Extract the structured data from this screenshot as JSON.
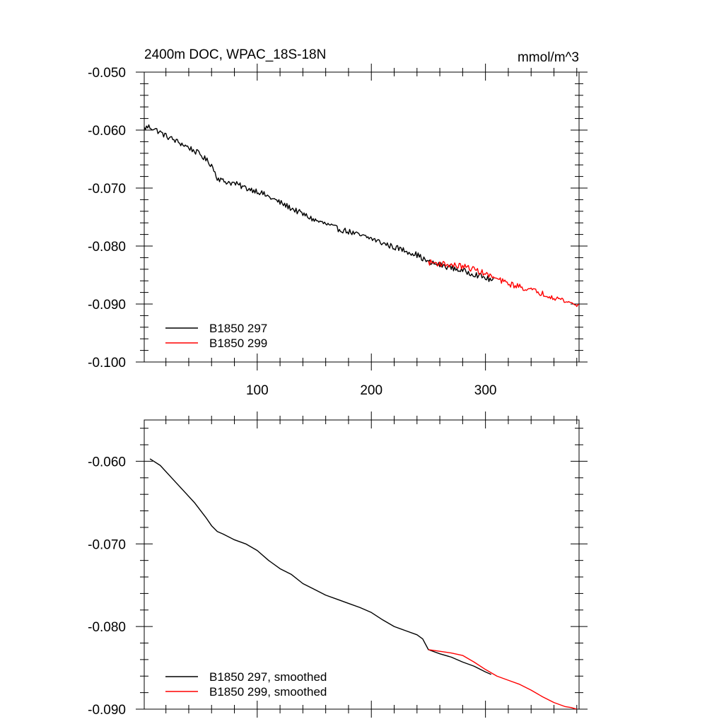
{
  "chart_data": [
    {
      "type": "line",
      "title": "2400m DOC, WPAC_18S-18N",
      "units": "mmol/m^3",
      "xlim": [
        1,
        382
      ],
      "ylim": [
        -0.1,
        -0.05
      ],
      "xticks": [
        100,
        200,
        300
      ],
      "xtick_labels": [
        "100",
        "200",
        "300"
      ],
      "yticks": [
        -0.05,
        -0.06,
        -0.07,
        -0.08,
        -0.09,
        -0.1
      ],
      "ytick_labels": [
        "-0.050",
        "-0.060",
        "-0.070",
        "-0.080",
        "-0.090",
        "-0.100"
      ],
      "legend_position": "bottom-left",
      "series": [
        {
          "name": "B1850 297",
          "color": "#000000",
          "noise": 0.0005,
          "x": [
            1,
            5,
            10,
            20,
            30,
            40,
            50,
            60,
            65,
            70,
            80,
            90,
            100,
            110,
            120,
            130,
            140,
            150,
            160,
            170,
            180,
            190,
            200,
            210,
            220,
            230,
            240,
            250,
            260,
            270,
            280,
            290,
            300,
            307
          ],
          "y": [
            -0.0597,
            -0.0594,
            -0.0598,
            -0.061,
            -0.062,
            -0.063,
            -0.0642,
            -0.066,
            -0.0682,
            -0.0688,
            -0.0692,
            -0.07,
            -0.0705,
            -0.0715,
            -0.0725,
            -0.0735,
            -0.0745,
            -0.0755,
            -0.0762,
            -0.077,
            -0.0775,
            -0.0782,
            -0.0787,
            -0.0795,
            -0.0802,
            -0.0808,
            -0.0815,
            -0.0828,
            -0.0833,
            -0.0837,
            -0.0843,
            -0.0848,
            -0.0855,
            -0.086
          ]
        },
        {
          "name": "B1850 299",
          "color": "#ff0000",
          "noise": 0.0005,
          "x": [
            250,
            260,
            270,
            280,
            290,
            300,
            310,
            320,
            330,
            340,
            350,
            360,
            370,
            382
          ],
          "y": [
            -0.0828,
            -0.083,
            -0.0833,
            -0.0835,
            -0.084,
            -0.0848,
            -0.0857,
            -0.0865,
            -0.087,
            -0.0876,
            -0.0882,
            -0.0888,
            -0.0895,
            -0.0903
          ]
        }
      ]
    },
    {
      "type": "line",
      "xlim": [
        1,
        382
      ],
      "ylim": [
        -0.09,
        -0.055
      ],
      "yticks": [
        -0.06,
        -0.07,
        -0.08,
        -0.09
      ],
      "ytick_labels": [
        "-0.060",
        "-0.070",
        "-0.080",
        "-0.090"
      ],
      "xticks": [
        100,
        200,
        300
      ],
      "legend_position": "bottom-left",
      "series": [
        {
          "name": "B1850 297, smoothed",
          "color": "#000000",
          "x": [
            6,
            15,
            25,
            35,
            45,
            55,
            60,
            65,
            70,
            80,
            90,
            100,
            110,
            120,
            130,
            140,
            150,
            160,
            170,
            180,
            190,
            200,
            210,
            220,
            230,
            240,
            245,
            250,
            260,
            270,
            280,
            290,
            300,
            305
          ],
          "y": [
            -0.0597,
            -0.0605,
            -0.062,
            -0.0635,
            -0.065,
            -0.0668,
            -0.0678,
            -0.0685,
            -0.0688,
            -0.0695,
            -0.07,
            -0.0708,
            -0.072,
            -0.073,
            -0.0737,
            -0.0748,
            -0.0755,
            -0.0762,
            -0.0767,
            -0.0772,
            -0.0777,
            -0.0783,
            -0.0792,
            -0.08,
            -0.0805,
            -0.081,
            -0.0815,
            -0.0828,
            -0.0833,
            -0.0837,
            -0.0843,
            -0.0848,
            -0.0855,
            -0.0858
          ]
        },
        {
          "name": "B1850 299, smoothed",
          "color": "#ff0000",
          "x": [
            250,
            260,
            270,
            280,
            290,
            300,
            310,
            320,
            330,
            340,
            350,
            360,
            370,
            375,
            380
          ],
          "y": [
            -0.0828,
            -0.083,
            -0.0832,
            -0.0835,
            -0.0843,
            -0.0852,
            -0.086,
            -0.0865,
            -0.087,
            -0.0877,
            -0.0885,
            -0.0892,
            -0.0897,
            -0.0898,
            -0.09
          ]
        }
      ]
    }
  ]
}
